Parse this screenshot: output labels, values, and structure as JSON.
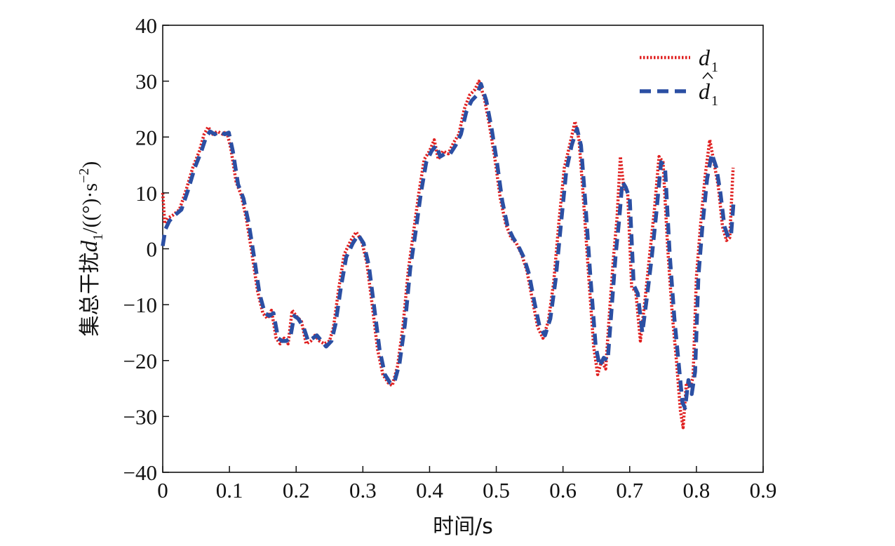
{
  "chart_data": {
    "type": "line",
    "title": "",
    "xlabel": "时间/s",
    "ylabel": {
      "prefix": "集总干扰",
      "symbol": "d",
      "subscript": "1",
      "unit_open": "/((°)·s",
      "unit_exp": "−2",
      "unit_close": ")"
    },
    "xlim": [
      0,
      0.9
    ],
    "ylim": [
      -40,
      40
    ],
    "xticks": [
      0,
      0.1,
      0.2,
      0.3,
      0.4,
      0.5,
      0.6,
      0.7,
      0.8,
      0.9
    ],
    "xtick_labels": [
      "0",
      "0.1",
      "0.2",
      "0.3",
      "0.4",
      "0.5",
      "0.6",
      "0.7",
      "0.8",
      "0.9"
    ],
    "yticks": [
      -40,
      -30,
      -20,
      -10,
      0,
      10,
      20,
      30,
      40
    ],
    "ytick_labels": [
      "−40",
      "−30",
      "−20",
      "−10",
      "0",
      "10",
      "20",
      "30",
      "40"
    ],
    "grid": false,
    "legend_position": "top-right",
    "series": [
      {
        "legend_symbol": "d",
        "legend_sub": "1",
        "legend_hat": false,
        "color": "#e02020",
        "style": "dotted",
        "points": [
          [
            0.0,
            10.0
          ],
          [
            0.003,
            4.5
          ],
          [
            0.008,
            5.5
          ],
          [
            0.015,
            6.0
          ],
          [
            0.025,
            7.0
          ],
          [
            0.035,
            10.5
          ],
          [
            0.045,
            14.5
          ],
          [
            0.055,
            17.5
          ],
          [
            0.062,
            20.5
          ],
          [
            0.068,
            21.8
          ],
          [
            0.075,
            20.5
          ],
          [
            0.082,
            21.0
          ],
          [
            0.09,
            20.5
          ],
          [
            0.096,
            21.0
          ],
          [
            0.102,
            18.0
          ],
          [
            0.11,
            12.0
          ],
          [
            0.118,
            9.5
          ],
          [
            0.126,
            5.0
          ],
          [
            0.134,
            -1.0
          ],
          [
            0.142,
            -7.5
          ],
          [
            0.15,
            -11.5
          ],
          [
            0.157,
            -12.5
          ],
          [
            0.163,
            -11.0
          ],
          [
            0.17,
            -16.0
          ],
          [
            0.176,
            -17.0
          ],
          [
            0.182,
            -16.0
          ],
          [
            0.188,
            -17.0
          ],
          [
            0.194,
            -11.0
          ],
          [
            0.2,
            -12.0
          ],
          [
            0.208,
            -13.0
          ],
          [
            0.215,
            -17.0
          ],
          [
            0.222,
            -16.5
          ],
          [
            0.228,
            -15.5
          ],
          [
            0.235,
            -16.5
          ],
          [
            0.242,
            -17.0
          ],
          [
            0.25,
            -16.5
          ],
          [
            0.256,
            -14.0
          ],
          [
            0.264,
            -7.0
          ],
          [
            0.272,
            -1.0
          ],
          [
            0.282,
            1.5
          ],
          [
            0.29,
            3.0
          ],
          [
            0.298,
            1.5
          ],
          [
            0.306,
            -2.5
          ],
          [
            0.314,
            -10.0
          ],
          [
            0.322,
            -18.0
          ],
          [
            0.33,
            -22.5
          ],
          [
            0.338,
            -24.0
          ],
          [
            0.344,
            -24.5
          ],
          [
            0.352,
            -21.0
          ],
          [
            0.36,
            -14.0
          ],
          [
            0.368,
            -4.0
          ],
          [
            0.376,
            3.0
          ],
          [
            0.384,
            10.0
          ],
          [
            0.392,
            16.0
          ],
          [
            0.4,
            17.5
          ],
          [
            0.407,
            19.5
          ],
          [
            0.413,
            16.0
          ],
          [
            0.42,
            17.5
          ],
          [
            0.428,
            17.0
          ],
          [
            0.436,
            19.0
          ],
          [
            0.444,
            20.5
          ],
          [
            0.452,
            25.0
          ],
          [
            0.46,
            27.5
          ],
          [
            0.468,
            28.5
          ],
          [
            0.474,
            30.0
          ],
          [
            0.482,
            27.0
          ],
          [
            0.49,
            22.0
          ],
          [
            0.498,
            16.0
          ],
          [
            0.506,
            9.0
          ],
          [
            0.514,
            4.5
          ],
          [
            0.522,
            2.0
          ],
          [
            0.53,
            1.0
          ],
          [
            0.538,
            -1.0
          ],
          [
            0.546,
            -4.0
          ],
          [
            0.554,
            -9.0
          ],
          [
            0.562,
            -14.0
          ],
          [
            0.57,
            -16.0
          ],
          [
            0.578,
            -13.0
          ],
          [
            0.586,
            -6.0
          ],
          [
            0.594,
            5.0
          ],
          [
            0.602,
            14.5
          ],
          [
            0.61,
            18.5
          ],
          [
            0.618,
            22.8
          ],
          [
            0.624,
            19.5
          ],
          [
            0.63,
            10.0
          ],
          [
            0.638,
            -4.0
          ],
          [
            0.646,
            -17.5
          ],
          [
            0.652,
            -22.5
          ],
          [
            0.658,
            -20.0
          ],
          [
            0.664,
            -21.5
          ],
          [
            0.67,
            -11.0
          ],
          [
            0.676,
            -1.0
          ],
          [
            0.681,
            5.5
          ],
          [
            0.686,
            16.5
          ],
          [
            0.691,
            11.0
          ],
          [
            0.697,
            10.0
          ],
          [
            0.703,
            -7.0
          ],
          [
            0.709,
            -7.5
          ],
          [
            0.716,
            -16.5
          ],
          [
            0.723,
            -9.0
          ],
          [
            0.73,
            -1.0
          ],
          [
            0.737,
            7.0
          ],
          [
            0.744,
            16.5
          ],
          [
            0.75,
            15.5
          ],
          [
            0.757,
            0.0
          ],
          [
            0.764,
            -12.0
          ],
          [
            0.77,
            -20.0
          ],
          [
            0.776,
            -29.0
          ],
          [
            0.78,
            -32.0
          ],
          [
            0.785,
            -24.0
          ],
          [
            0.79,
            -25.0
          ],
          [
            0.795,
            -23.0
          ],
          [
            0.8,
            -5.0
          ],
          [
            0.806,
            4.0
          ],
          [
            0.813,
            13.0
          ],
          [
            0.82,
            19.5
          ],
          [
            0.827,
            15.0
          ],
          [
            0.833,
            11.0
          ],
          [
            0.839,
            4.0
          ],
          [
            0.845,
            1.5
          ],
          [
            0.85,
            2.0
          ],
          [
            0.855,
            14.5
          ]
        ]
      },
      {
        "legend_symbol": "d",
        "legend_sub": "1",
        "legend_hat": true,
        "color": "#2b4fa3",
        "style": "dashed",
        "points": [
          [
            0.0,
            0.5
          ],
          [
            0.004,
            3.5
          ],
          [
            0.01,
            5.0
          ],
          [
            0.018,
            6.0
          ],
          [
            0.028,
            7.0
          ],
          [
            0.038,
            10.5
          ],
          [
            0.048,
            14.5
          ],
          [
            0.058,
            17.5
          ],
          [
            0.065,
            20.0
          ],
          [
            0.071,
            21.0
          ],
          [
            0.078,
            20.5
          ],
          [
            0.085,
            21.0
          ],
          [
            0.093,
            20.5
          ],
          [
            0.099,
            20.8
          ],
          [
            0.105,
            17.5
          ],
          [
            0.113,
            11.5
          ],
          [
            0.121,
            9.0
          ],
          [
            0.129,
            4.5
          ],
          [
            0.137,
            -1.5
          ],
          [
            0.145,
            -8.0
          ],
          [
            0.153,
            -11.5
          ],
          [
            0.16,
            -12.0
          ],
          [
            0.166,
            -11.5
          ],
          [
            0.173,
            -16.0
          ],
          [
            0.179,
            -16.5
          ],
          [
            0.185,
            -16.5
          ],
          [
            0.191,
            -16.0
          ],
          [
            0.197,
            -12.0
          ],
          [
            0.203,
            -12.5
          ],
          [
            0.211,
            -14.0
          ],
          [
            0.218,
            -16.5
          ],
          [
            0.225,
            -16.0
          ],
          [
            0.231,
            -15.5
          ],
          [
            0.238,
            -16.5
          ],
          [
            0.245,
            -17.5
          ],
          [
            0.253,
            -16.5
          ],
          [
            0.259,
            -13.5
          ],
          [
            0.267,
            -7.0
          ],
          [
            0.275,
            -1.5
          ],
          [
            0.285,
            1.0
          ],
          [
            0.293,
            2.5
          ],
          [
            0.301,
            1.0
          ],
          [
            0.309,
            -3.0
          ],
          [
            0.317,
            -10.5
          ],
          [
            0.325,
            -18.0
          ],
          [
            0.333,
            -22.5
          ],
          [
            0.341,
            -24.0
          ],
          [
            0.347,
            -24.0
          ],
          [
            0.355,
            -20.5
          ],
          [
            0.363,
            -13.5
          ],
          [
            0.371,
            -3.5
          ],
          [
            0.379,
            3.0
          ],
          [
            0.387,
            10.0
          ],
          [
            0.395,
            15.5
          ],
          [
            0.403,
            17.5
          ],
          [
            0.41,
            18.5
          ],
          [
            0.416,
            16.5
          ],
          [
            0.423,
            17.0
          ],
          [
            0.431,
            17.0
          ],
          [
            0.439,
            18.5
          ],
          [
            0.447,
            20.5
          ],
          [
            0.455,
            24.5
          ],
          [
            0.463,
            26.5
          ],
          [
            0.471,
            27.5
          ],
          [
            0.477,
            29.5
          ],
          [
            0.485,
            26.5
          ],
          [
            0.493,
            21.5
          ],
          [
            0.501,
            15.5
          ],
          [
            0.509,
            8.5
          ],
          [
            0.517,
            4.0
          ],
          [
            0.525,
            2.0
          ],
          [
            0.533,
            0.5
          ],
          [
            0.541,
            -1.5
          ],
          [
            0.549,
            -4.5
          ],
          [
            0.557,
            -9.5
          ],
          [
            0.565,
            -14.0
          ],
          [
            0.573,
            -15.5
          ],
          [
            0.581,
            -12.5
          ],
          [
            0.589,
            -5.5
          ],
          [
            0.597,
            4.5
          ],
          [
            0.605,
            14.0
          ],
          [
            0.613,
            18.5
          ],
          [
            0.621,
            21.5
          ],
          [
            0.627,
            18.5
          ],
          [
            0.633,
            9.0
          ],
          [
            0.641,
            -5.0
          ],
          [
            0.649,
            -17.5
          ],
          [
            0.655,
            -21.0
          ],
          [
            0.661,
            -19.5
          ],
          [
            0.667,
            -20.0
          ],
          [
            0.673,
            -10.5
          ],
          [
            0.679,
            -1.0
          ],
          [
            0.684,
            5.0
          ],
          [
            0.689,
            12.0
          ],
          [
            0.694,
            11.0
          ],
          [
            0.7,
            9.0
          ],
          [
            0.706,
            -6.5
          ],
          [
            0.712,
            -8.0
          ],
          [
            0.719,
            -15.0
          ],
          [
            0.726,
            -8.5
          ],
          [
            0.733,
            -1.5
          ],
          [
            0.74,
            6.5
          ],
          [
            0.747,
            15.5
          ],
          [
            0.753,
            14.5
          ],
          [
            0.76,
            -1.0
          ],
          [
            0.767,
            -12.5
          ],
          [
            0.773,
            -20.0
          ],
          [
            0.779,
            -27.5
          ],
          [
            0.783,
            -28.5
          ],
          [
            0.788,
            -23.5
          ],
          [
            0.793,
            -26.0
          ],
          [
            0.798,
            -22.0
          ],
          [
            0.803,
            -5.0
          ],
          [
            0.809,
            4.0
          ],
          [
            0.816,
            12.5
          ],
          [
            0.823,
            17.0
          ],
          [
            0.83,
            14.5
          ],
          [
            0.836,
            10.0
          ],
          [
            0.842,
            4.0
          ],
          [
            0.848,
            2.0
          ],
          [
            0.852,
            2.5
          ],
          [
            0.856,
            9.0
          ]
        ]
      }
    ]
  }
}
